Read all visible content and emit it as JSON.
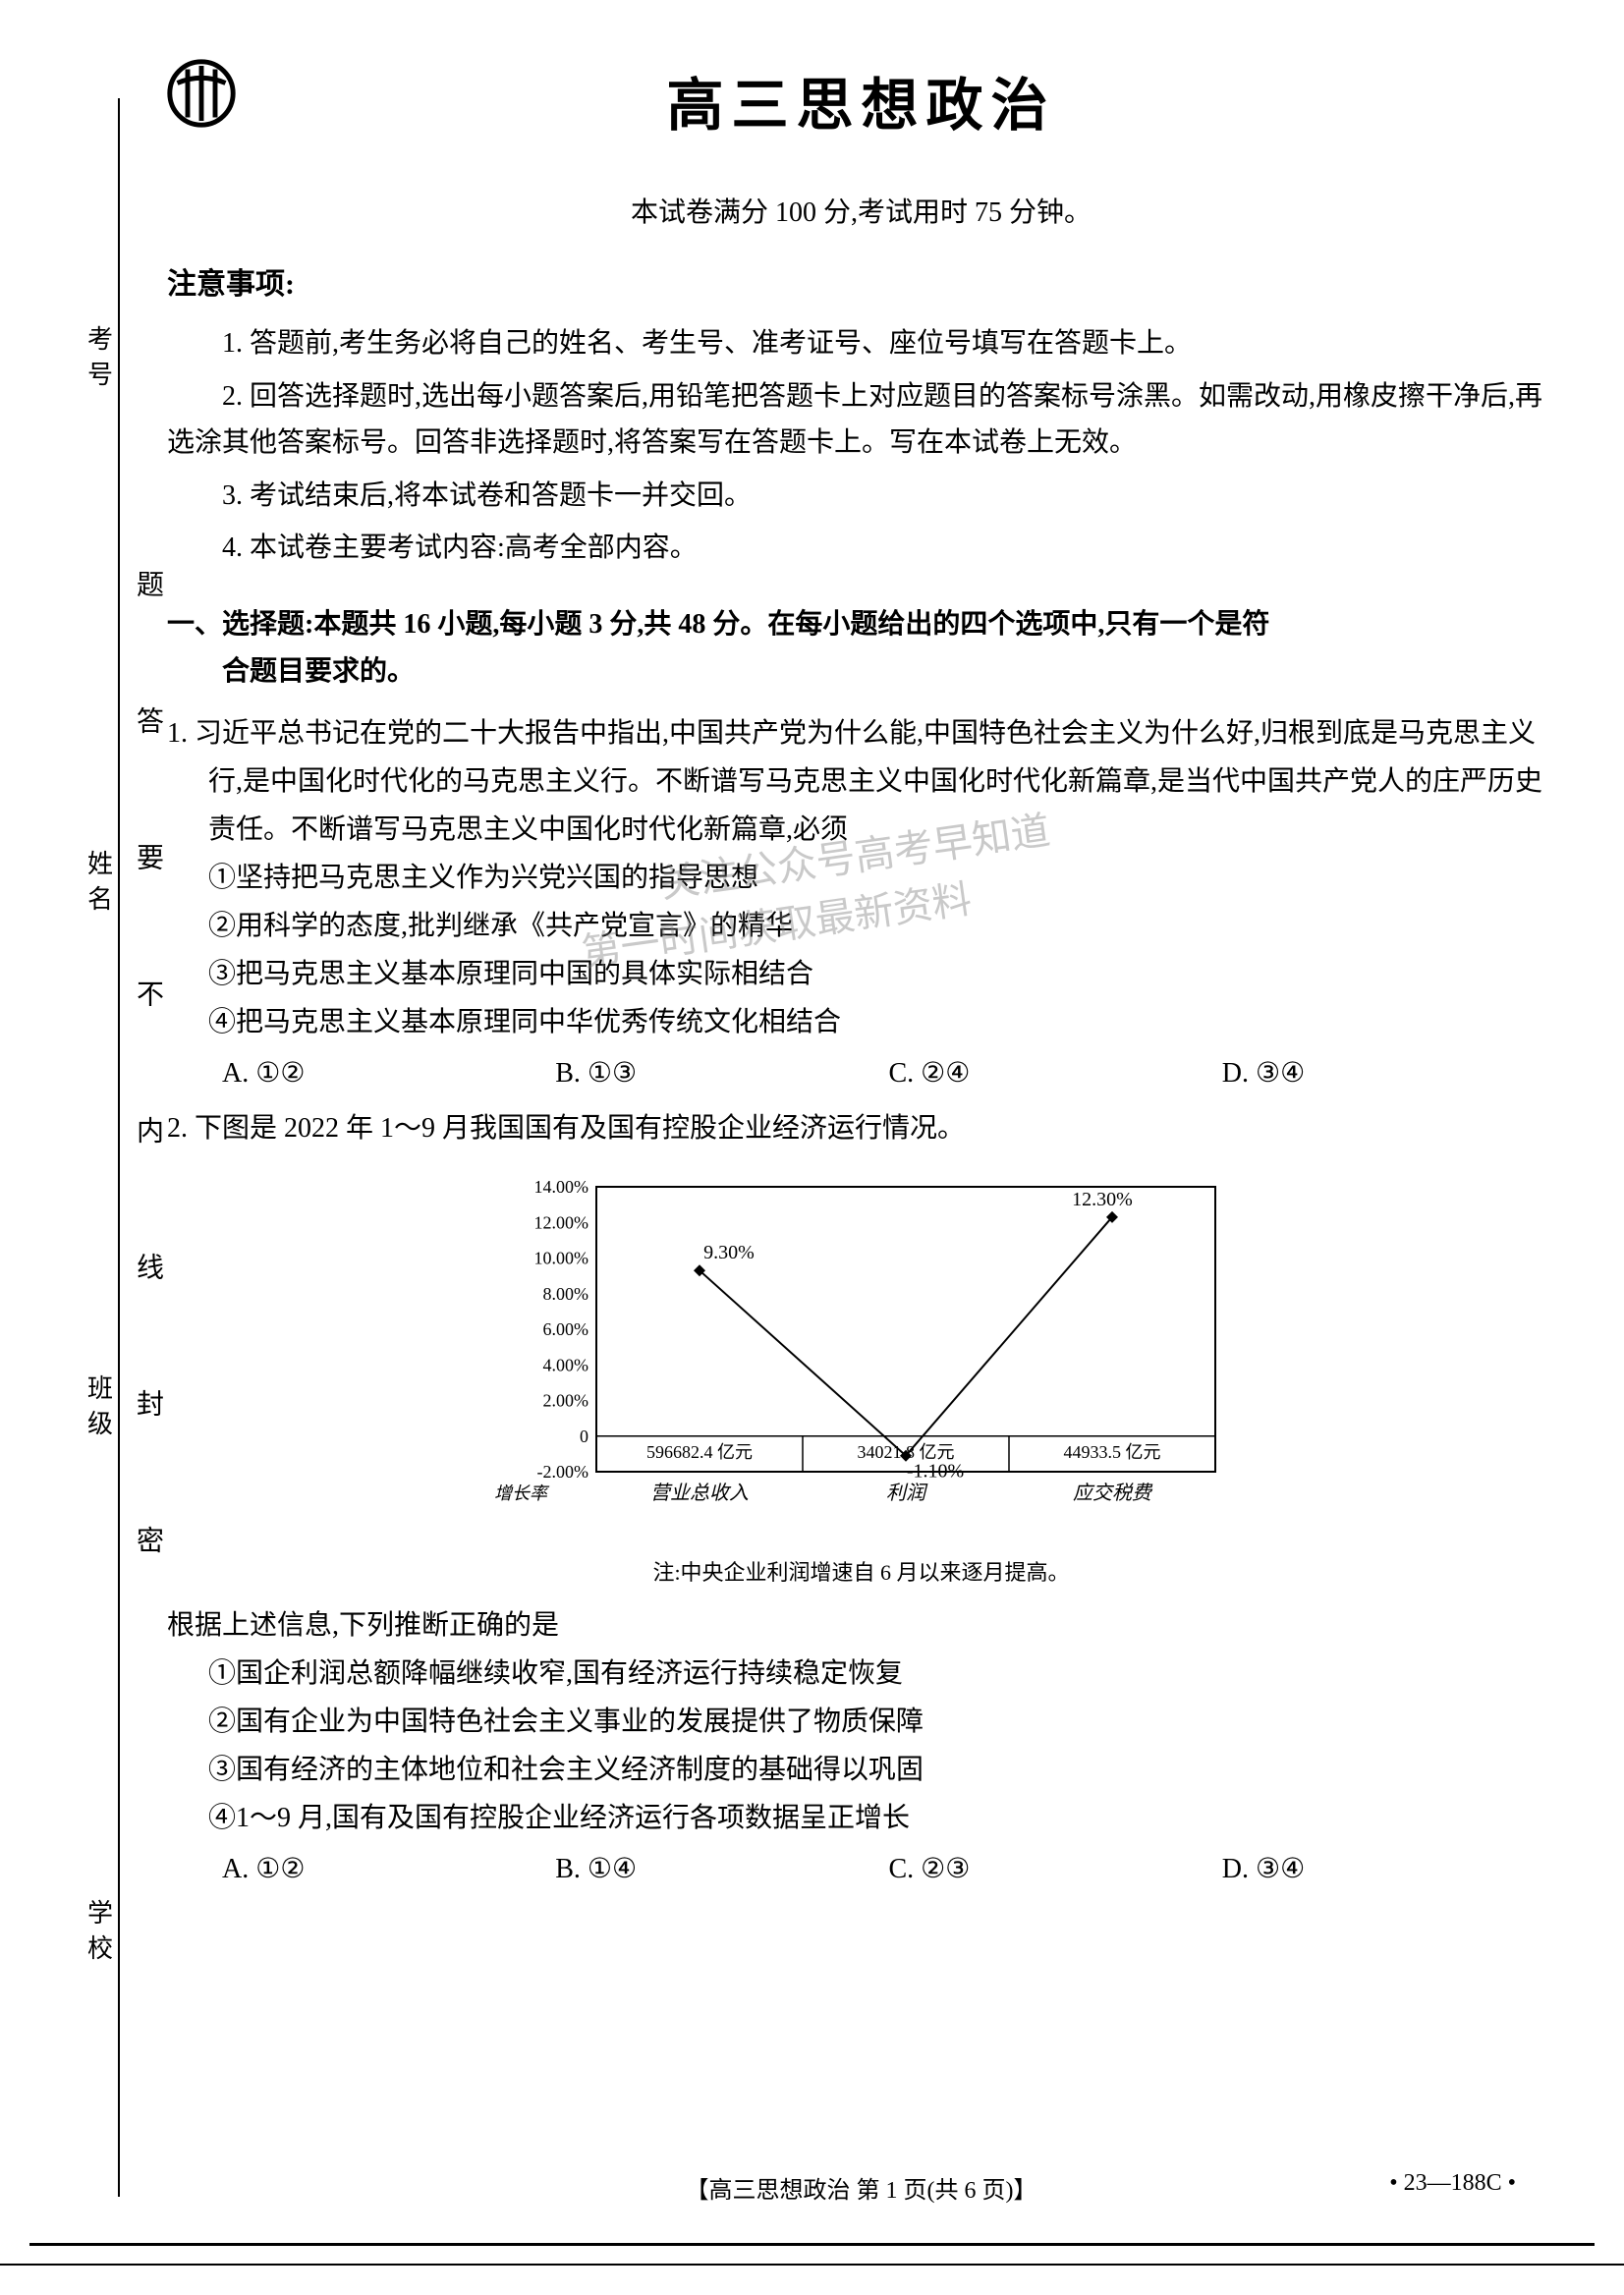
{
  "title": "高三思想政治",
  "subtitle": "本试卷满分 100 分,考试用时 75 分钟。",
  "side_labels": [
    "考号",
    "姓名",
    "班级",
    "学校"
  ],
  "vertical_seal_text": "题 答 要 不 内 线 封 密",
  "notice_heading": "注意事项:",
  "instructions": [
    "1. 答题前,考生务必将自己的姓名、考生号、准考证号、座位号填写在答题卡上。",
    "2. 回答选择题时,选出每小题答案后,用铅笔把答题卡上对应题目的答案标号涂黑。如需改动,用橡皮擦干净后,再选涂其他答案标号。回答非选择题时,将答案写在答题卡上。写在本试卷上无效。",
    "3. 考试结束后,将本试卷和答题卡一并交回。",
    "4. 本试卷主要考试内容:高考全部内容。"
  ],
  "section1": {
    "title_line1": "一、选择题:本题共 16 小题,每小题 3 分,共 48 分。在每小题给出的四个选项中,只有一个是符",
    "title_line2": "合题目要求的。"
  },
  "q1": {
    "stem": "1. 习近平总书记在党的二十大报告中指出,中国共产党为什么能,中国特色社会主义为什么好,归根到底是马克思主义行,是中国化时代化的马克思主义行。不断谱写马克思主义中国化时代化新篇章,是当代中国共产党人的庄严历史责任。不断谱写马克思主义中国化时代化新篇章,必须",
    "items": [
      "①坚持把马克思主义作为兴党兴国的指导思想",
      "②用科学的态度,批判继承《共产党宣言》的精华",
      "③把马克思主义基本原理同中国的具体实际相结合",
      "④把马克思主义基本原理同中华优秀传统文化相结合"
    ],
    "options": [
      "A. ①②",
      "B. ①③",
      "C. ②④",
      "D. ③④"
    ]
  },
  "q2": {
    "stem": "2. 下图是 2022 年 1～9 月我国国有及国有控股企业经济运行情况。",
    "chart": {
      "type": "line",
      "y_axis_label": "增长率",
      "y_ticks": [
        "14.00%",
        "12.00%",
        "10.00%",
        "8.00%",
        "6.00%",
        "4.00%",
        "2.00%",
        "0",
        "-2.00%"
      ],
      "ylim": [
        -2,
        14
      ],
      "categories": [
        "营业总收入",
        "利润",
        "应交税费"
      ],
      "category_values": [
        "596682.4 亿元",
        "34021.8 亿元",
        "44933.5 亿元"
      ],
      "point_labels": [
        "9.30%",
        "-1.10%",
        "12.30%"
      ],
      "points_y": [
        9.3,
        -1.1,
        12.3
      ],
      "line_color": "#000000",
      "line_width": 2,
      "marker": "diamond",
      "background_color": "#ffffff",
      "border_color": "#000000",
      "font_size_axis": 18,
      "font_size_label": 20
    },
    "note": "注:中央企业利润增速自 6 月以来逐月提高。",
    "followup": "根据上述信息,下列推断正确的是",
    "items": [
      "①国企利润总额降幅继续收窄,国有经济运行持续稳定恢复",
      "②国有企业为中国特色社会主义事业的发展提供了物质保障",
      "③国有经济的主体地位和社会主义经济制度的基础得以巩固",
      "④1～9 月,国有及国有控股企业经济运行各项数据呈正增长"
    ],
    "options": [
      "A. ①②",
      "B. ①④",
      "C. ②③",
      "D. ③④"
    ]
  },
  "footer": {
    "center": "【高三思想政治 第 1 页(共 6 页)】",
    "right": "• 23—188C •"
  },
  "watermark": {
    "line1": "关注公众号高考早知道",
    "line2": "第一时间获取最新资料"
  }
}
